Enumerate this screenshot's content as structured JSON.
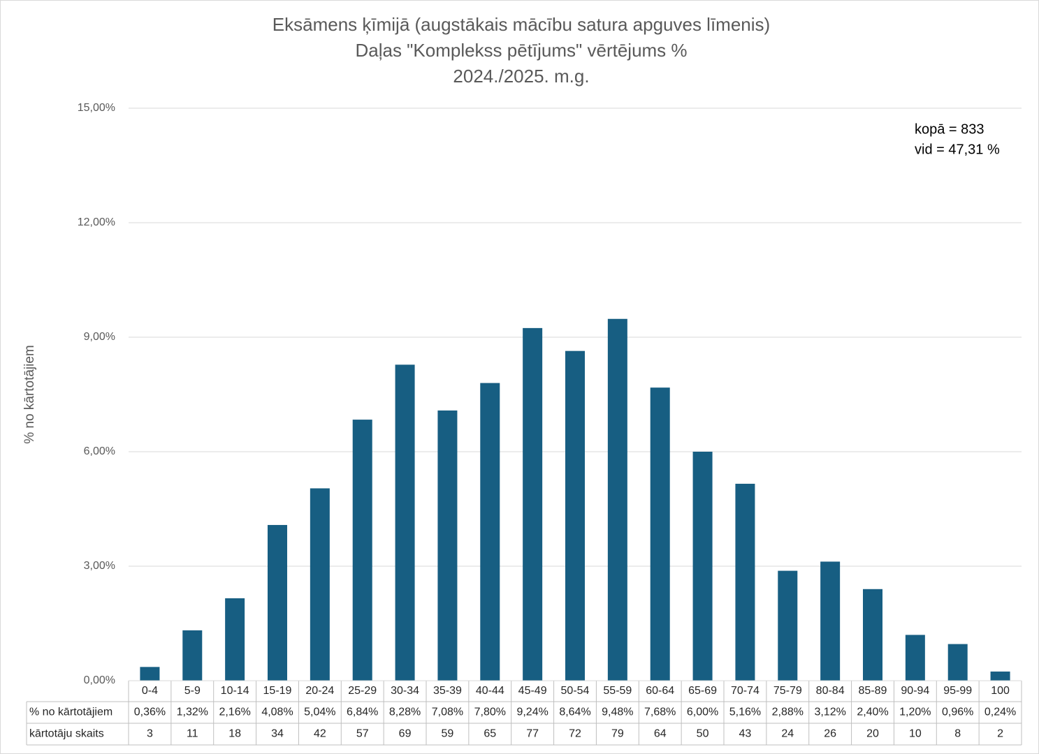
{
  "chart_data": {
    "type": "bar",
    "title": [
      "Eksāmens ķīmijā (augstākais mācību satura apguves līmenis)",
      "Daļas \"Komplekss pētījums\" vērtējums %",
      "2024./2025. m.g."
    ],
    "y_label": "% no kārtotājiem",
    "annotations": [
      "kopā = 833",
      "vid = 47,31 %"
    ],
    "categories": [
      "0-4",
      "5-9",
      "10-14",
      "15-19",
      "20-24",
      "25-29",
      "30-34",
      "35-39",
      "40-44",
      "45-49",
      "50-54",
      "55-59",
      "60-64",
      "65-69",
      "70-74",
      "75-79",
      "80-84",
      "85-89",
      "90-94",
      "95-99",
      "100"
    ],
    "series": [
      {
        "name": "% no kārtotājiem",
        "color": "#175e82",
        "values": [
          0.36,
          1.32,
          2.16,
          4.08,
          5.04,
          6.84,
          8.28,
          7.08,
          7.8,
          9.24,
          8.64,
          9.48,
          7.68,
          6.0,
          5.16,
          2.88,
          3.12,
          2.4,
          1.2,
          0.96,
          0.24
        ],
        "value_labels": [
          "0,36%",
          "1,32%",
          "2,16%",
          "4,08%",
          "5,04%",
          "6,84%",
          "8,28%",
          "7,08%",
          "7,80%",
          "9,24%",
          "8,64%",
          "9,48%",
          "7,68%",
          "6,00%",
          "5,16%",
          "2,88%",
          "3,12%",
          "2,40%",
          "1,20%",
          "0,96%",
          "0,24%"
        ]
      }
    ],
    "counts": {
      "name": "kārtotāju skaits",
      "values": [
        3,
        11,
        18,
        34,
        42,
        57,
        69,
        59,
        65,
        77,
        72,
        79,
        64,
        50,
        43,
        24,
        26,
        20,
        10,
        8,
        2
      ]
    },
    "ylim": [
      0,
      15
    ],
    "yticks": [
      {
        "value": 0,
        "label": "0,00%"
      },
      {
        "value": 3,
        "label": "3,00%"
      },
      {
        "value": 6,
        "label": "6,00%"
      },
      {
        "value": 9,
        "label": "9,00%"
      },
      {
        "value": 12,
        "label": "12,00%"
      },
      {
        "value": 15,
        "label": "15,00%"
      }
    ],
    "grid": true
  }
}
